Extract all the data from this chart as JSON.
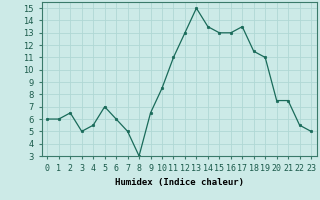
{
  "x": [
    0,
    1,
    2,
    3,
    4,
    5,
    6,
    7,
    8,
    9,
    10,
    11,
    12,
    13,
    14,
    15,
    16,
    17,
    18,
    19,
    20,
    21,
    22,
    23
  ],
  "y": [
    6,
    6,
    6.5,
    5,
    5.5,
    7,
    6,
    5,
    3,
    6.5,
    8.5,
    11,
    13,
    15,
    13.5,
    13,
    13,
    13.5,
    11.5,
    11,
    7.5,
    7.5,
    5.5,
    5
  ],
  "line_color": "#1a6b5a",
  "marker": "o",
  "marker_size": 1.8,
  "background_color": "#cceae7",
  "grid_color": "#b0d8d4",
  "xlabel": "Humidex (Indice chaleur)",
  "ylim": [
    3,
    15.5
  ],
  "xlim": [
    -0.5,
    23.5
  ],
  "yticks": [
    3,
    4,
    5,
    6,
    7,
    8,
    9,
    10,
    11,
    12,
    13,
    14,
    15
  ],
  "xtick_labels": [
    "0",
    "1",
    "2",
    "3",
    "4",
    "5",
    "6",
    "7",
    "8",
    "9",
    "10",
    "11",
    "12",
    "13",
    "14",
    "15",
    "16",
    "17",
    "18",
    "19",
    "20",
    "21",
    "22",
    "23"
  ],
  "label_fontsize": 6.5,
  "tick_fontsize": 6
}
